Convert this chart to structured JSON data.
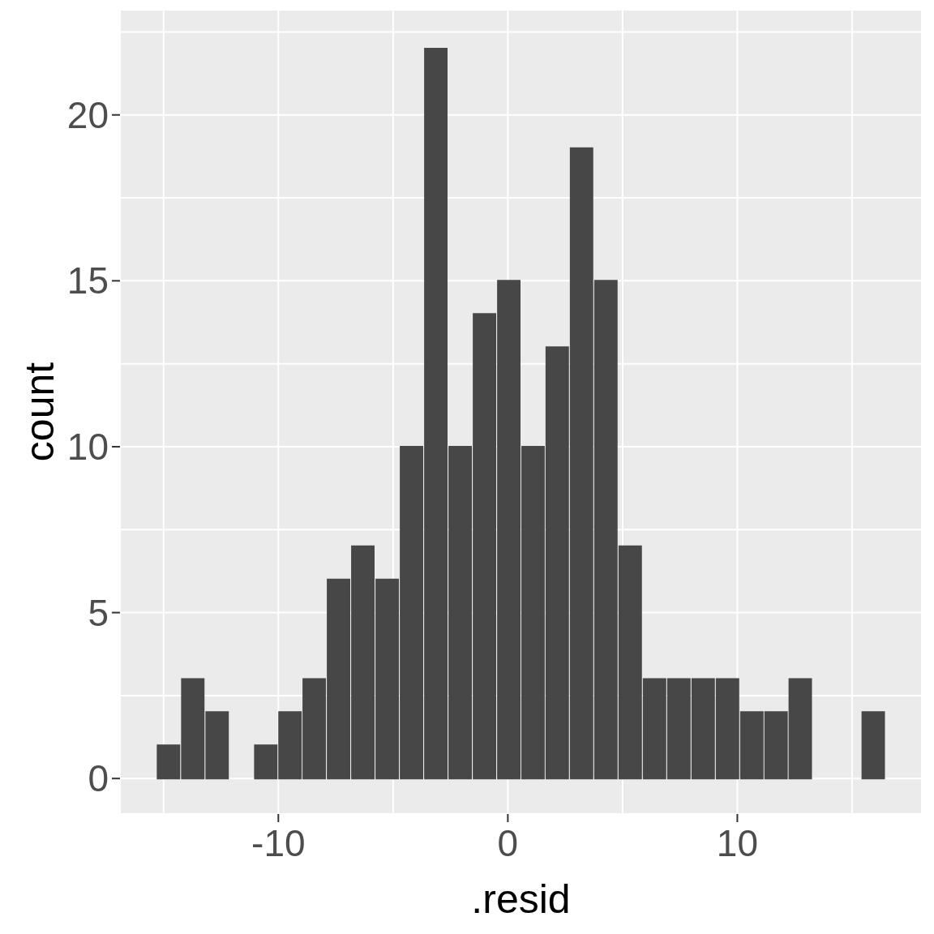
{
  "chart_data": {
    "type": "histogram",
    "xlabel": ".resid",
    "ylabel": "count",
    "bins": [
      -15.3,
      -14.24,
      -13.18,
      -12.12,
      -11.06,
      -10.0,
      -8.95,
      -7.89,
      -6.83,
      -5.77,
      -4.71,
      -3.65,
      -2.59,
      -1.53,
      -0.47,
      0.59,
      1.64,
      2.7,
      3.76,
      4.82,
      5.88,
      6.94,
      8.0,
      9.06,
      10.12,
      11.18,
      12.23,
      13.29,
      14.35,
      15.41,
      16.47
    ],
    "values": [
      1,
      3,
      2,
      0,
      1,
      2,
      3,
      6,
      7,
      6,
      10,
      22,
      10,
      14,
      15,
      10,
      13,
      19,
      15,
      7,
      3,
      3,
      3,
      3,
      2,
      2,
      3,
      0,
      0,
      2
    ],
    "color": "#474747",
    "xlim": [
      -16.9,
      18.04
    ],
    "xticks": [
      {
        "value": -15,
        "label": null
      },
      -10,
      {
        "value": -5,
        "label": null
      },
      0,
      {
        "value": 5,
        "label": null
      },
      10,
      {
        "value": 15,
        "label": null
      }
    ],
    "ylim": [
      -1.07,
      23.17
    ],
    "yticks": [
      0,
      {
        "value": 2.5,
        "label": null
      },
      5,
      {
        "value": 7.5,
        "label": null
      },
      10,
      {
        "value": 12.5,
        "label": null
      },
      15,
      {
        "value": 17.5,
        "label": null
      },
      20,
      {
        "value": 22.5,
        "label": null
      }
    ],
    "grid": true
  }
}
